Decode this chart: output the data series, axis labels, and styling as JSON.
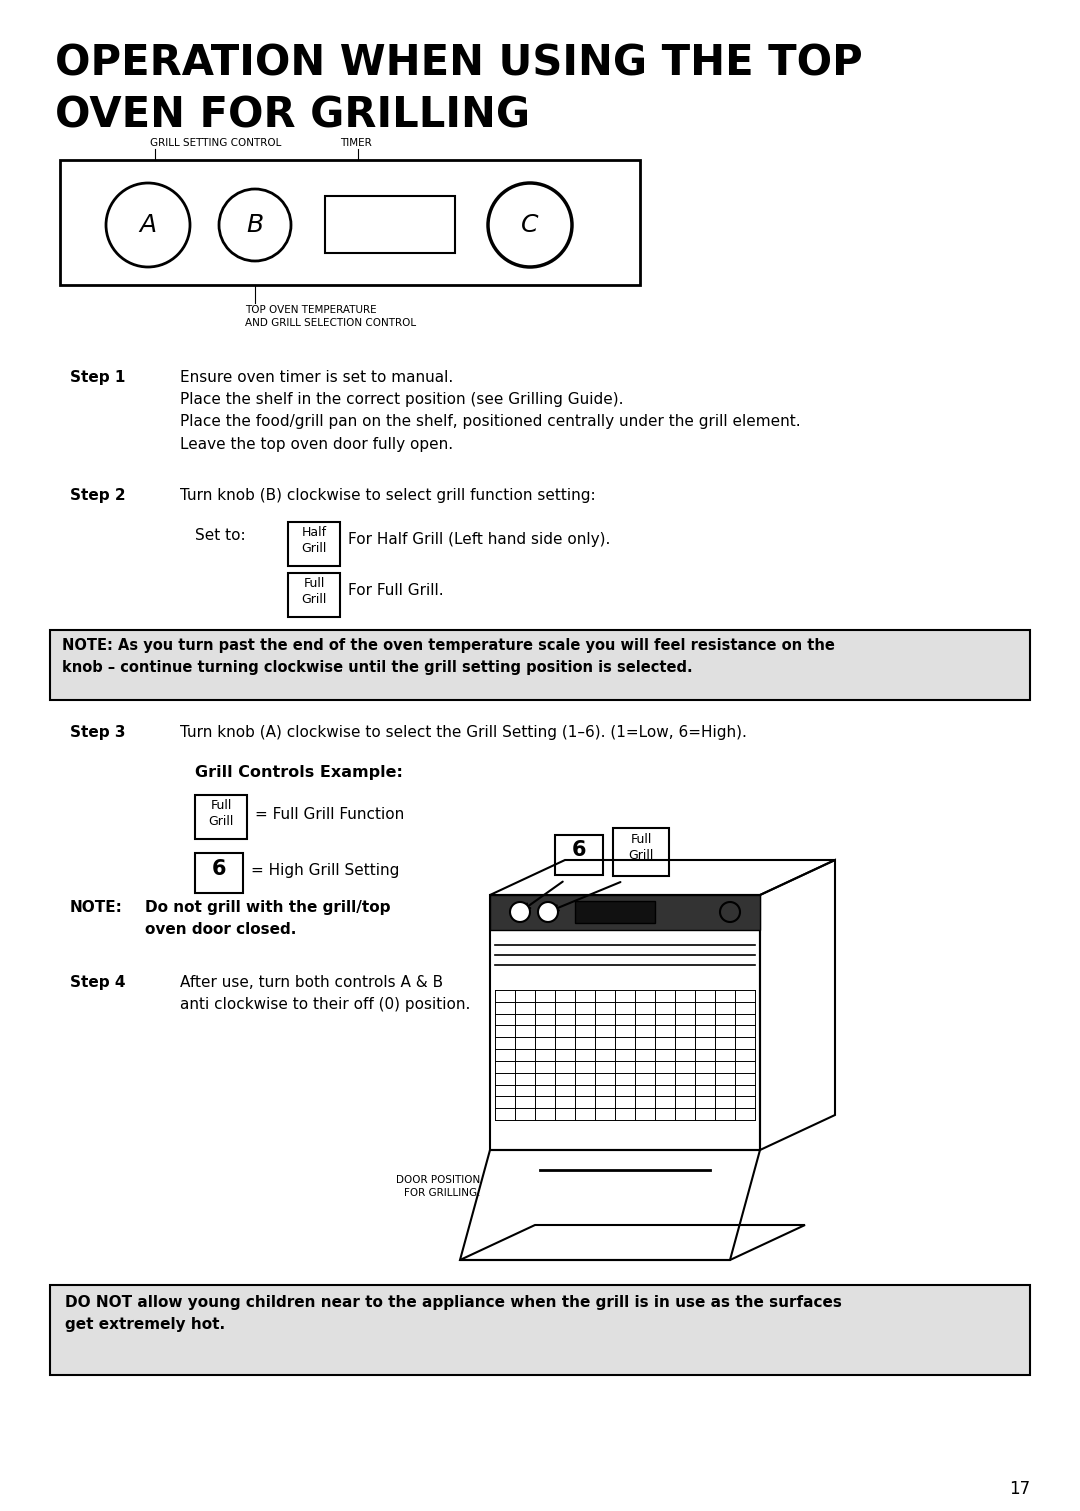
{
  "title_line1": "OPERATION WHEN USING THE TOP",
  "title_line2": "OVEN FOR GRILLING",
  "bg_color": "#ffffff",
  "text_color": "#000000",
  "page_number": "17",
  "label_grill_setting": "GRILL SETTING CONTROL",
  "label_timer": "TIMER",
  "label_top_oven": "TOP OVEN TEMPERATURE\nAND GRILL SELECTION CONTROL",
  "step1_label": "Step 1",
  "step1_text": "Ensure oven timer is set to manual.\nPlace the shelf in the correct position (see Grilling Guide).\nPlace the food/grill pan on the shelf, positioned centrally under the grill element.\nLeave the top oven door fully open.",
  "step2_label": "Step 2",
  "step2_text": "Turn knob (B) clockwise to select grill function setting:",
  "set_to": "Set to:",
  "half_grill": "Half\nGrill",
  "half_grill_desc": "For Half Grill (Left hand side only).",
  "full_grill": "Full\nGrill",
  "full_grill_desc": "For Full Grill.",
  "note1_text": "NOTE: As you turn past the end of the oven temperature scale you will feel resistance on the\nknob – continue turning clockwise until the grill setting position is selected.",
  "step3_label": "Step 3",
  "step3_text": "Turn knob (A) clockwise to select the Grill Setting (1–6). (1=Low, 6=High).",
  "grill_controls": "Grill Controls Example:",
  "full_grill_fn": "= Full Grill Function",
  "six_label": "6",
  "high_grill": "= High Grill Setting",
  "note2_label": "NOTE:",
  "note2_text": "Do not grill with the grill/top\noven door closed.",
  "step4_label": "Step 4",
  "step4_text": "After use, turn both controls A & B\nanti clockwise to their off (0) position.",
  "door_pos": "DOOR POSITION\nFOR GRILLING.",
  "warning_text": "DO NOT allow young children near to the appliance when the grill is in use as the surfaces\nget extremely hot.",
  "note1_bg": "#e0e0e0",
  "warning_bg": "#e0e0e0"
}
